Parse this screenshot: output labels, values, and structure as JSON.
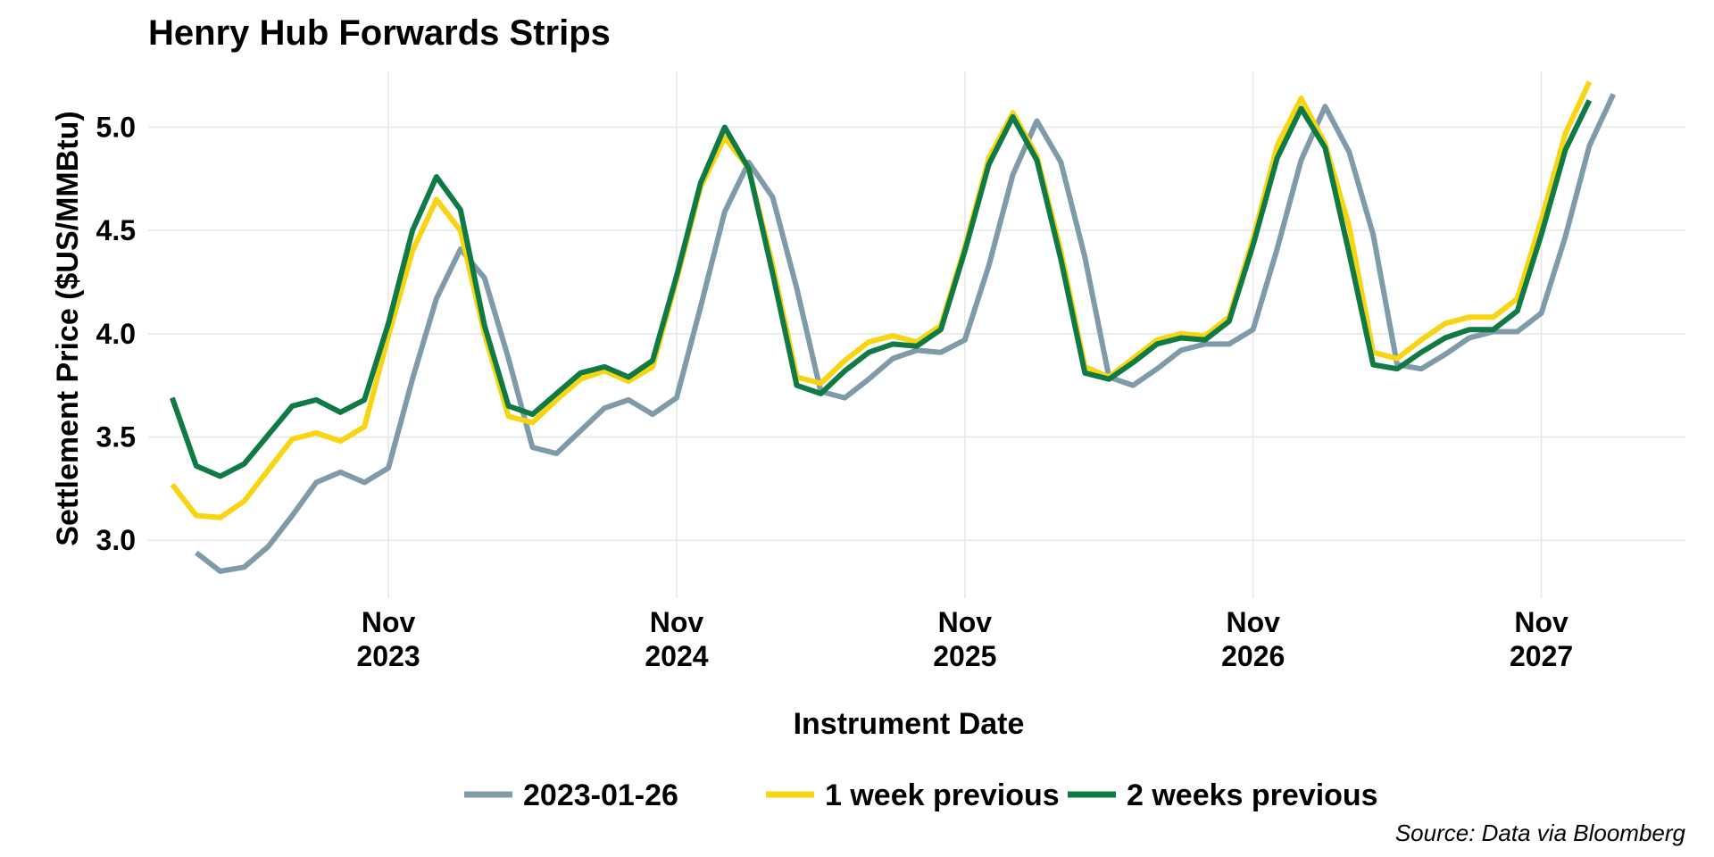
{
  "chart_data": {
    "type": "line",
    "title": "Henry Hub Forwards Strips",
    "xlabel": "Instrument Date",
    "ylabel": "Settlement Price ($US/MMBtu)",
    "caption": "Source: Data via Bloomberg",
    "legend_position": "bottom",
    "grid": true,
    "x_start": "2023-03",
    "x_unit": "month",
    "xlim": [
      "2023-01",
      "2028-05"
    ],
    "ylim": [
      2.72,
      5.27
    ],
    "x_ticks": [
      {
        "date": "2023-11",
        "label": [
          "Nov",
          "2023"
        ]
      },
      {
        "date": "2024-11",
        "label": [
          "Nov",
          "2024"
        ]
      },
      {
        "date": "2025-11",
        "label": [
          "Nov",
          "2025"
        ]
      },
      {
        "date": "2026-11",
        "label": [
          "Nov",
          "2026"
        ]
      },
      {
        "date": "2027-11",
        "label": [
          "Nov",
          "2027"
        ]
      }
    ],
    "y_ticks": [
      {
        "value": 3.0,
        "label": "3.0"
      },
      {
        "value": 3.5,
        "label": "3.5"
      },
      {
        "value": 4.0,
        "label": "4.0"
      },
      {
        "value": 4.5,
        "label": "4.5"
      },
      {
        "value": 5.0,
        "label": "5.0"
      }
    ],
    "series": [
      {
        "name": "2023-01-26",
        "color": "#7f9aa8",
        "x": [
          "2023-03",
          "2023-04",
          "2023-05",
          "2023-06",
          "2023-07",
          "2023-08",
          "2023-09",
          "2023-10",
          "2023-11",
          "2023-12",
          "2024-01",
          "2024-02",
          "2024-03",
          "2024-04",
          "2024-05",
          "2024-06",
          "2024-07",
          "2024-08",
          "2024-09",
          "2024-10",
          "2024-11",
          "2024-12",
          "2025-01",
          "2025-02",
          "2025-03",
          "2025-04",
          "2025-05",
          "2025-06",
          "2025-07",
          "2025-08",
          "2025-09",
          "2025-10",
          "2025-11",
          "2025-12",
          "2026-01",
          "2026-02",
          "2026-03",
          "2026-04",
          "2026-05",
          "2026-06",
          "2026-07",
          "2026-08",
          "2026-09",
          "2026-10",
          "2026-11",
          "2026-12",
          "2027-01",
          "2027-02",
          "2027-03",
          "2027-04",
          "2027-05",
          "2027-06",
          "2027-07",
          "2027-08",
          "2027-09",
          "2027-10",
          "2027-11",
          "2027-12",
          "2028-01",
          "2028-02"
        ],
        "values": [
          2.94,
          2.85,
          2.87,
          2.97,
          3.12,
          3.28,
          3.33,
          3.28,
          3.35,
          3.78,
          4.17,
          4.41,
          4.27,
          3.88,
          3.45,
          3.42,
          3.53,
          3.64,
          3.68,
          3.61,
          3.69,
          4.13,
          4.59,
          4.83,
          4.66,
          4.22,
          3.72,
          3.69,
          3.78,
          3.88,
          3.92,
          3.91,
          3.97,
          4.33,
          4.77,
          5.03,
          4.83,
          4.37,
          3.79,
          3.75,
          3.83,
          3.92,
          3.95,
          3.95,
          4.02,
          4.41,
          4.84,
          5.1,
          4.88,
          4.48,
          3.85,
          3.83,
          3.9,
          3.98,
          4.01,
          4.01,
          4.1,
          4.47,
          4.91,
          5.16
        ]
      },
      {
        "name": "1 week previous",
        "color": "#f7d513",
        "x": [
          "2023-02",
          "2023-03",
          "2023-04",
          "2023-05",
          "2023-06",
          "2023-07",
          "2023-08",
          "2023-09",
          "2023-10",
          "2023-11",
          "2023-12",
          "2024-01",
          "2024-02",
          "2024-03",
          "2024-04",
          "2024-05",
          "2024-06",
          "2024-07",
          "2024-08",
          "2024-09",
          "2024-10",
          "2024-11",
          "2024-12",
          "2025-01",
          "2025-02",
          "2025-03",
          "2025-04",
          "2025-05",
          "2025-06",
          "2025-07",
          "2025-08",
          "2025-09",
          "2025-10",
          "2025-11",
          "2025-12",
          "2026-01",
          "2026-02",
          "2026-03",
          "2026-04",
          "2026-05",
          "2026-06",
          "2026-07",
          "2026-08",
          "2026-09",
          "2026-10",
          "2026-11",
          "2026-12",
          "2027-01",
          "2027-02",
          "2027-03",
          "2027-04",
          "2027-05",
          "2027-06",
          "2027-07",
          "2027-08",
          "2027-09",
          "2027-10",
          "2027-11",
          "2027-12",
          "2028-01"
        ],
        "values": [
          3.27,
          3.12,
          3.11,
          3.19,
          3.34,
          3.49,
          3.52,
          3.48,
          3.55,
          3.99,
          4.4,
          4.65,
          4.5,
          4.0,
          3.6,
          3.57,
          3.68,
          3.78,
          3.82,
          3.77,
          3.84,
          4.26,
          4.71,
          4.95,
          4.8,
          4.33,
          3.79,
          3.76,
          3.87,
          3.96,
          3.99,
          3.96,
          4.04,
          4.42,
          4.85,
          5.07,
          4.86,
          4.4,
          3.84,
          3.79,
          3.88,
          3.97,
          4.0,
          3.99,
          4.08,
          4.46,
          4.91,
          5.14,
          4.92,
          4.52,
          3.91,
          3.88,
          3.97,
          4.05,
          4.08,
          4.08,
          4.17,
          4.55,
          4.97,
          5.22
        ]
      },
      {
        "name": "2 weeks previous",
        "color": "#0f7a44",
        "x": [
          "2023-02",
          "2023-03",
          "2023-04",
          "2023-05",
          "2023-06",
          "2023-07",
          "2023-08",
          "2023-09",
          "2023-10",
          "2023-11",
          "2023-12",
          "2024-01",
          "2024-02",
          "2024-03",
          "2024-04",
          "2024-05",
          "2024-06",
          "2024-07",
          "2024-08",
          "2024-09",
          "2024-10",
          "2024-11",
          "2024-12",
          "2025-01",
          "2025-02",
          "2025-03",
          "2025-04",
          "2025-05",
          "2025-06",
          "2025-07",
          "2025-08",
          "2025-09",
          "2025-10",
          "2025-11",
          "2025-12",
          "2026-01",
          "2026-02",
          "2026-03",
          "2026-04",
          "2026-05",
          "2026-06",
          "2026-07",
          "2026-08",
          "2026-09",
          "2026-10",
          "2026-11",
          "2026-12",
          "2027-01",
          "2027-02",
          "2027-03",
          "2027-04",
          "2027-05",
          "2027-06",
          "2027-07",
          "2027-08",
          "2027-09",
          "2027-10",
          "2027-11",
          "2027-12",
          "2028-01"
        ],
        "values": [
          3.69,
          3.36,
          3.31,
          3.37,
          3.51,
          3.65,
          3.68,
          3.62,
          3.68,
          4.05,
          4.5,
          4.76,
          4.6,
          4.04,
          3.65,
          3.61,
          3.71,
          3.81,
          3.84,
          3.79,
          3.87,
          4.28,
          4.73,
          5.0,
          4.8,
          4.29,
          3.75,
          3.71,
          3.82,
          3.91,
          3.95,
          3.94,
          4.02,
          4.4,
          4.82,
          5.05,
          4.84,
          4.36,
          3.81,
          3.78,
          3.86,
          3.95,
          3.98,
          3.97,
          4.06,
          4.43,
          4.85,
          5.09,
          4.9,
          4.39,
          3.85,
          3.83,
          3.91,
          3.98,
          4.02,
          4.02,
          4.11,
          4.48,
          4.89,
          5.13
        ]
      }
    ]
  }
}
